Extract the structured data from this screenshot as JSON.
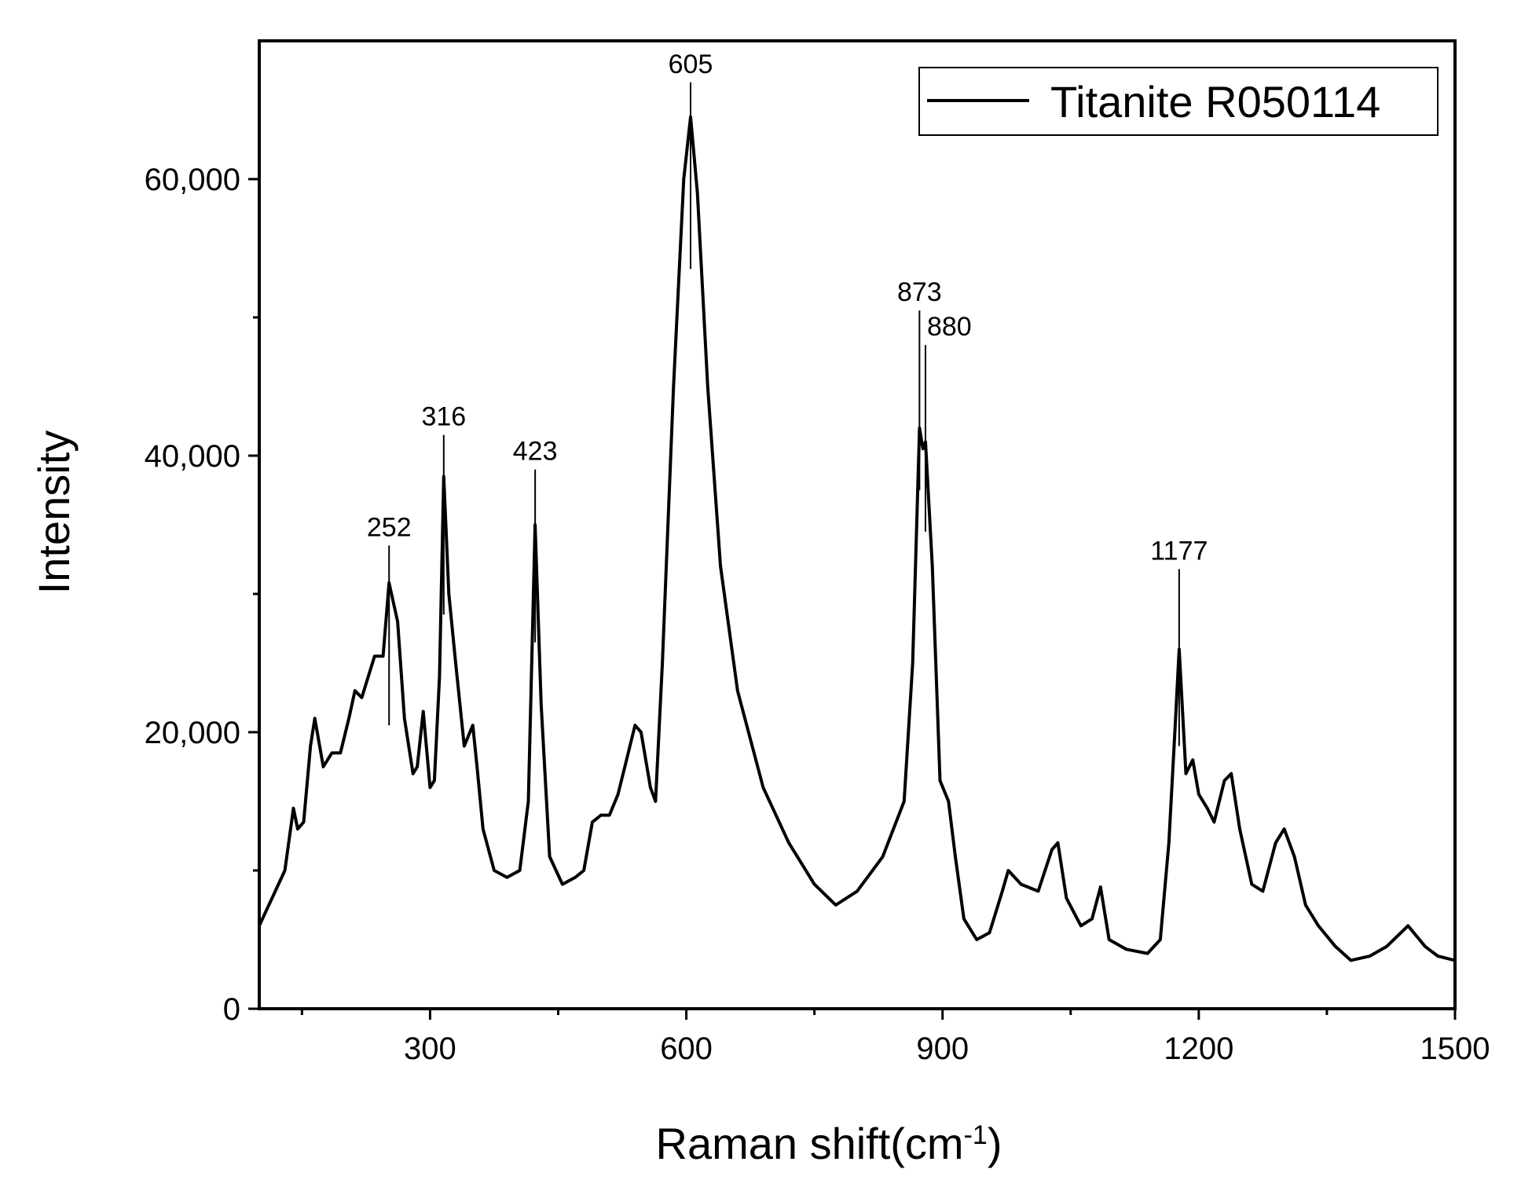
{
  "chart_data": {
    "type": "line",
    "xlabel": "Raman shift(cm",
    "xlabel_sup": "-1",
    "xlabel_close": ")",
    "ylabel": "Intensity",
    "xlim": [
      100,
      1500
    ],
    "ylim": [
      0,
      70000
    ],
    "x_ticks": [
      300,
      600,
      900,
      1200,
      1500
    ],
    "x_tick_labels": [
      "300",
      "600",
      "900",
      "1200",
      "1500"
    ],
    "x_minor_ticks": [
      150,
      450,
      750,
      1050,
      1350
    ],
    "y_ticks": [
      0,
      20000,
      40000,
      60000
    ],
    "y_tick_labels": [
      "0",
      "20,000",
      "40,000",
      "60,000"
    ],
    "y_minor_ticks": [
      10000,
      30000,
      50000
    ],
    "grid": false,
    "legend": {
      "position": "top-right",
      "entries": [
        "Titanite R050114"
      ]
    },
    "series": [
      {
        "name": "Titanite R050114",
        "color": "#000000",
        "points": [
          [
            100,
            6000
          ],
          [
            115,
            8000
          ],
          [
            130,
            10000
          ],
          [
            140,
            14500
          ],
          [
            145,
            13000
          ],
          [
            152,
            13500
          ],
          [
            160,
            19000
          ],
          [
            165,
            21000
          ],
          [
            175,
            17500
          ],
          [
            185,
            18500
          ],
          [
            195,
            18500
          ],
          [
            205,
            21000
          ],
          [
            212,
            23000
          ],
          [
            220,
            22500
          ],
          [
            225,
            23500
          ],
          [
            235,
            25500
          ],
          [
            245,
            25500
          ],
          [
            252,
            30800
          ],
          [
            262,
            28000
          ],
          [
            270,
            21000
          ],
          [
            280,
            17000
          ],
          [
            285,
            17500
          ],
          [
            292,
            21500
          ],
          [
            300,
            16000
          ],
          [
            305,
            16500
          ],
          [
            311,
            24000
          ],
          [
            316,
            38500
          ],
          [
            322,
            30000
          ],
          [
            330,
            25000
          ],
          [
            340,
            19000
          ],
          [
            350,
            20500
          ],
          [
            355,
            17500
          ],
          [
            362,
            13000
          ],
          [
            375,
            10000
          ],
          [
            390,
            9500
          ],
          [
            405,
            10000
          ],
          [
            415,
            15000
          ],
          [
            423,
            35000
          ],
          [
            430,
            22000
          ],
          [
            440,
            11000
          ],
          [
            455,
            9000
          ],
          [
            470,
            9500
          ],
          [
            480,
            10000
          ],
          [
            490,
            13500
          ],
          [
            500,
            14000
          ],
          [
            510,
            14000
          ],
          [
            520,
            15500
          ],
          [
            530,
            18000
          ],
          [
            540,
            20500
          ],
          [
            547,
            20000
          ],
          [
            558,
            16000
          ],
          [
            564,
            15000
          ],
          [
            572,
            25000
          ],
          [
            585,
            45000
          ],
          [
            597,
            60000
          ],
          [
            605,
            64500
          ],
          [
            613,
            59000
          ],
          [
            625,
            45000
          ],
          [
            640,
            32000
          ],
          [
            660,
            23000
          ],
          [
            690,
            16000
          ],
          [
            720,
            12000
          ],
          [
            750,
            9000
          ],
          [
            775,
            7500
          ],
          [
            800,
            8500
          ],
          [
            830,
            11000
          ],
          [
            855,
            15000
          ],
          [
            865,
            25000
          ],
          [
            873,
            42000
          ],
          [
            877,
            40500
          ],
          [
            880,
            41000
          ],
          [
            888,
            32000
          ],
          [
            897,
            16500
          ],
          [
            907,
            15000
          ],
          [
            915,
            11000
          ],
          [
            925,
            6500
          ],
          [
            940,
            5000
          ],
          [
            955,
            5500
          ],
          [
            970,
            8500
          ],
          [
            977,
            10000
          ],
          [
            992,
            9000
          ],
          [
            1012,
            8500
          ],
          [
            1028,
            11500
          ],
          [
            1035,
            12000
          ],
          [
            1045,
            8000
          ],
          [
            1062,
            6000
          ],
          [
            1075,
            6500
          ],
          [
            1085,
            8800
          ],
          [
            1095,
            5000
          ],
          [
            1115,
            4300
          ],
          [
            1140,
            4000
          ],
          [
            1155,
            5000
          ],
          [
            1165,
            12000
          ],
          [
            1172,
            20000
          ],
          [
            1177,
            26000
          ],
          [
            1185,
            17000
          ],
          [
            1193,
            18000
          ],
          [
            1200,
            15500
          ],
          [
            1210,
            14500
          ],
          [
            1218,
            13500
          ],
          [
            1230,
            16500
          ],
          [
            1238,
            17000
          ],
          [
            1248,
            13000
          ],
          [
            1262,
            9000
          ],
          [
            1275,
            8500
          ],
          [
            1290,
            12000
          ],
          [
            1300,
            13000
          ],
          [
            1312,
            11000
          ],
          [
            1325,
            7500
          ],
          [
            1340,
            6000
          ],
          [
            1360,
            4500
          ],
          [
            1378,
            3500
          ],
          [
            1400,
            3800
          ],
          [
            1420,
            4500
          ],
          [
            1445,
            6000
          ],
          [
            1465,
            4500
          ],
          [
            1480,
            3800
          ],
          [
            1500,
            3500
          ]
        ]
      }
    ],
    "annotations": [
      {
        "label": "252",
        "x": 252,
        "line_y": [
          20500,
          33500
        ]
      },
      {
        "label": "316",
        "x": 316,
        "line_y": [
          28500,
          41500
        ]
      },
      {
        "label": "423",
        "x": 423,
        "line_y": [
          26500,
          39000
        ]
      },
      {
        "label": "605",
        "x": 605,
        "line_y": [
          53500,
          67000
        ]
      },
      {
        "label": "873",
        "x": 873,
        "line_y": [
          37500,
          50500
        ]
      },
      {
        "label": "880",
        "x": 880,
        "line_y": [
          34500,
          48000
        ]
      },
      {
        "label": "1177",
        "x": 1177,
        "line_y": [
          19000,
          31800
        ]
      }
    ]
  }
}
